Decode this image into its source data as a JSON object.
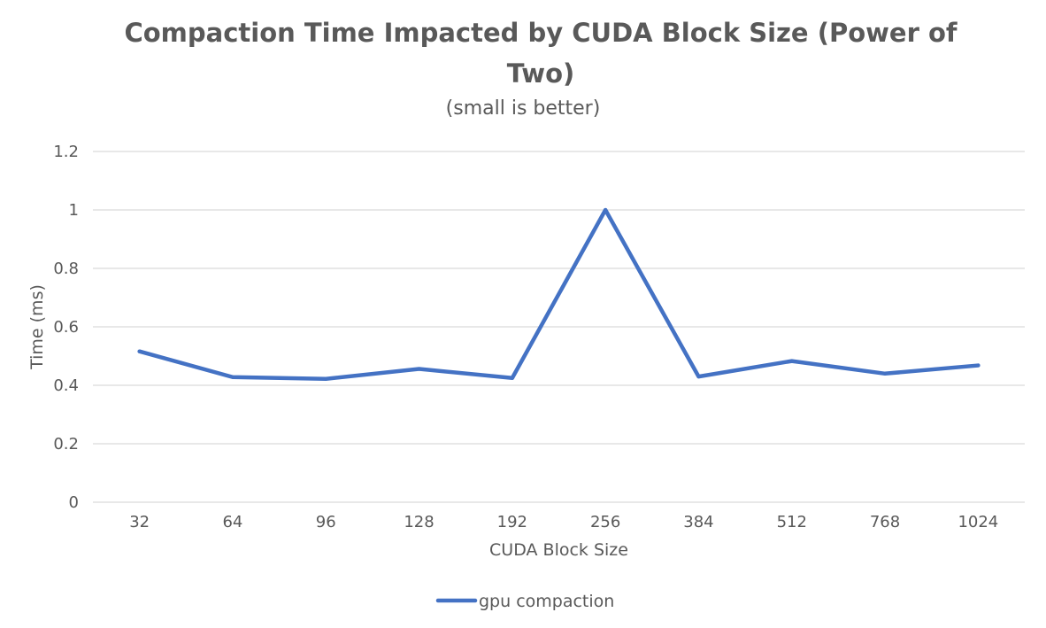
{
  "chart_data": {
    "type": "line",
    "title": "Compaction Time Impacted by CUDA Block Size (Power of Two)",
    "subtitle": "(small is better)",
    "xlabel": "CUDA Block Size",
    "ylabel": "Time (ms)",
    "categories": [
      "32",
      "64",
      "96",
      "128",
      "192",
      "256",
      "384",
      "512",
      "768",
      "1024"
    ],
    "series": [
      {
        "name": "gpu compaction",
        "color": "#4472C4",
        "values": [
          0.516,
          0.428,
          0.422,
          0.456,
          0.425,
          1.0,
          0.43,
          0.483,
          0.44,
          0.468
        ]
      }
    ],
    "ylim": [
      0,
      1.2
    ],
    "yticks": [
      "0",
      "0.2",
      "0.4",
      "0.6",
      "0.8",
      "1",
      "1.2"
    ],
    "grid": true,
    "legend_position": "bottom"
  }
}
